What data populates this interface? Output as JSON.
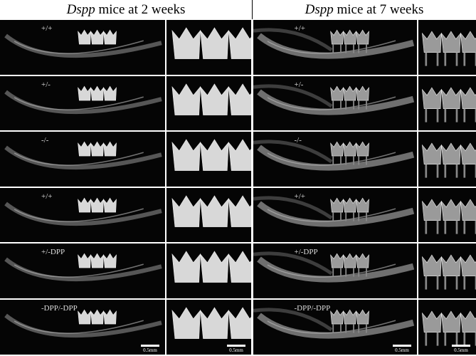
{
  "header": {
    "titles": [
      {
        "italic": "Dspp",
        "text": " mice at 2 weeks"
      },
      {
        "italic": "Dspp",
        "text": " mice at 7 weeks"
      }
    ]
  },
  "rows": [
    {
      "genotype": "+/+"
    },
    {
      "genotype": "+/-"
    },
    {
      "genotype": "-/-"
    },
    {
      "genotype": "+/+"
    },
    {
      "genotype": "+/-DPP"
    },
    {
      "genotype": "-DPP/-DPP"
    }
  ],
  "scale_bar": "0.5mm"
}
